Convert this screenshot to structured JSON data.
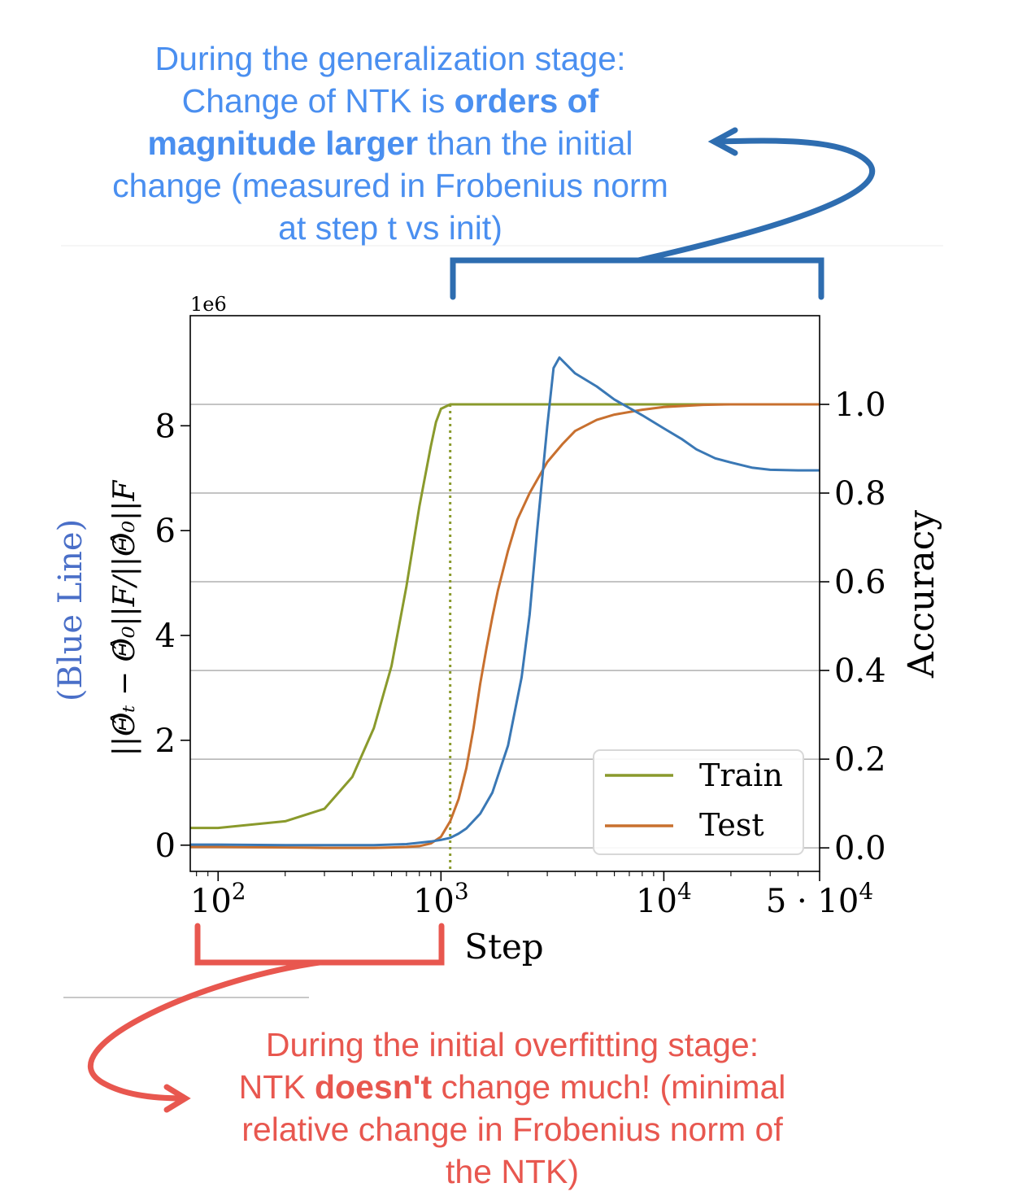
{
  "annotations": {
    "top": {
      "line1": "During the generalization stage:",
      "line2_pre": "Change of NTK is ",
      "line2_bold": "orders of",
      "line3_bold": "magnitude larger",
      "line3_post": " than the initial",
      "line4": "change (measured in Frobenius norm",
      "line5": "at step t  vs init)",
      "color": "#4a8ff0"
    },
    "bottom": {
      "line1": "During the initial overfitting stage:",
      "line2_pre": "NTK ",
      "line2_bold": "doesn't",
      "line2_post": " change much! (minimal",
      "line3": "relative change in Frobenius norm of",
      "line4": "the NTK)",
      "color": "#e8574f"
    }
  },
  "chart_data": {
    "type": "line",
    "xscale": "log",
    "xlabel": "Step",
    "xlim": [
      75,
      50000
    ],
    "xticks": [
      {
        "value": 100,
        "base": "10",
        "exp": "2",
        "prefix": ""
      },
      {
        "value": 1000,
        "base": "10",
        "exp": "3",
        "prefix": ""
      },
      {
        "value": 10000,
        "base": "10",
        "exp": "4",
        "prefix": ""
      },
      {
        "value": 50000,
        "base": "10",
        "exp": "4",
        "prefix": "5 · "
      }
    ],
    "left_axis": {
      "label_blue": "(Blue Line)",
      "label_main": "||Θ̂ₜ − Θ̂₀||F/||Θ̂₀||F",
      "multiplier": "1e6",
      "ylim": [
        -0.5,
        10.1
      ],
      "ticks": [
        0,
        2,
        4,
        6,
        8
      ],
      "tick_labels": [
        "0",
        "2",
        "4",
        "6",
        "8"
      ]
    },
    "right_axis": {
      "label": "Accuracy",
      "ylim": [
        -0.053,
        1.2
      ],
      "ticks": [
        0.0,
        0.2,
        0.4,
        0.6,
        0.8,
        1.0
      ],
      "tick_labels": [
        "0.0",
        "0.2",
        "0.4",
        "0.6",
        "0.8",
        "1.0"
      ]
    },
    "grid": "horizontal",
    "legend_position": "lower-right",
    "vline": {
      "x": 1100,
      "color": "#8a9a2c",
      "style": "dotted"
    },
    "series": [
      {
        "name": "Train",
        "axis": "right",
        "color": "#8a9a2c",
        "x": [
          75,
          100,
          200,
          300,
          400,
          500,
          600,
          700,
          800,
          900,
          950,
          1000,
          1100,
          2000,
          5000,
          10000,
          50000
        ],
        "y": [
          0.045,
          0.045,
          0.06,
          0.088,
          0.16,
          0.27,
          0.41,
          0.59,
          0.77,
          0.905,
          0.96,
          0.99,
          1.0,
          1.0,
          1.0,
          1.0,
          1.0
        ]
      },
      {
        "name": "Test",
        "axis": "right",
        "color": "#c8702f",
        "x": [
          75,
          100,
          200,
          300,
          400,
          500,
          600,
          700,
          800,
          900,
          1000,
          1100,
          1200,
          1300,
          1400,
          1500,
          1600,
          1700,
          1800,
          2000,
          2200,
          2500,
          3000,
          3500,
          4000,
          5000,
          6000,
          8000,
          10000,
          15000,
          20000,
          30000,
          50000
        ],
        "y": [
          0.002,
          0.002,
          0.001,
          0.0,
          0.0,
          0.0,
          0.001,
          0.002,
          0.004,
          0.01,
          0.025,
          0.06,
          0.11,
          0.18,
          0.27,
          0.37,
          0.45,
          0.52,
          0.58,
          0.67,
          0.74,
          0.8,
          0.87,
          0.91,
          0.94,
          0.965,
          0.977,
          0.988,
          0.994,
          0.999,
          1.0,
          1.0,
          1.0
        ]
      },
      {
        "name": "",
        "axis": "left",
        "color": "#3a78b5",
        "x": [
          75,
          100,
          200,
          300,
          500,
          700,
          900,
          1000,
          1100,
          1200,
          1300,
          1500,
          1700,
          2000,
          2300,
          2500,
          2700,
          3000,
          3200,
          3400,
          4000,
          5000,
          6000,
          8000,
          10000,
          12000,
          14000,
          17000,
          20000,
          25000,
          30000,
          40000,
          50000
        ],
        "y": [
          0.01,
          0.01,
          0.0,
          0.0,
          0.0,
          0.02,
          0.07,
          0.1,
          0.14,
          0.22,
          0.32,
          0.6,
          1.0,
          1.9,
          3.2,
          4.4,
          6.0,
          8.0,
          9.1,
          9.3,
          9.0,
          8.75,
          8.5,
          8.2,
          7.95,
          7.75,
          7.55,
          7.38,
          7.3,
          7.2,
          7.16,
          7.15,
          7.15
        ]
      }
    ]
  }
}
